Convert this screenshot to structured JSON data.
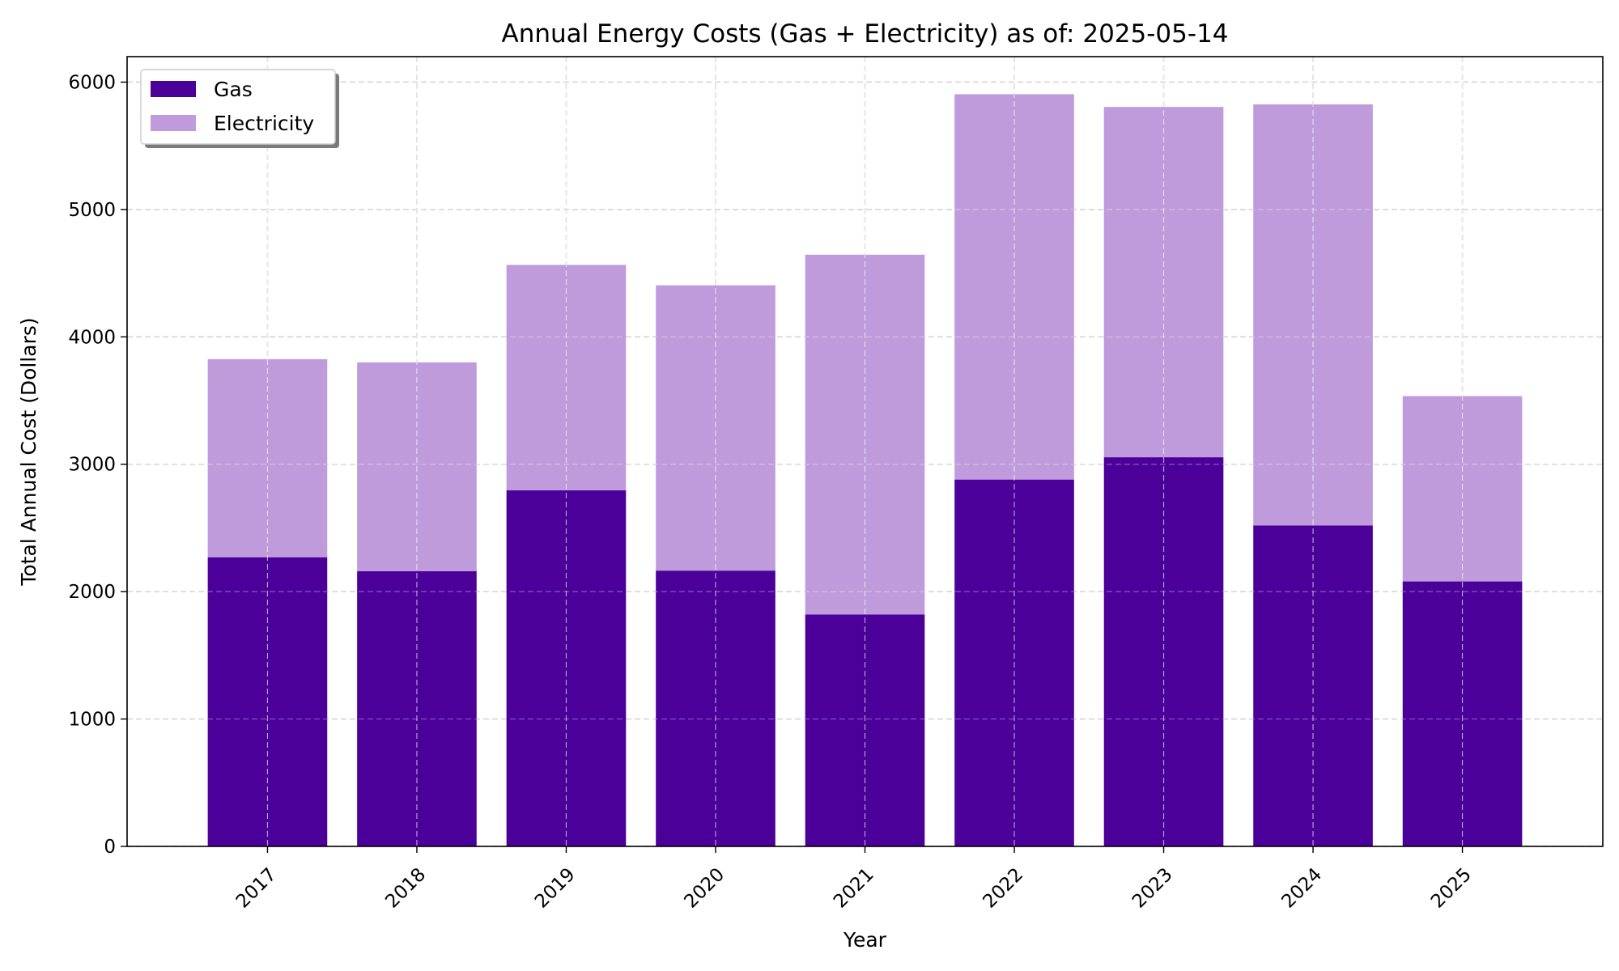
{
  "chart_data": {
    "type": "bar",
    "stacked": true,
    "title": "Annual Energy Costs (Gas + Electricity) as of: 2025-05-14",
    "xlabel": "Year",
    "ylabel": "Total Annual Cost (Dollars)",
    "categories": [
      "2017",
      "2018",
      "2019",
      "2020",
      "2021",
      "2022",
      "2023",
      "2024",
      "2025"
    ],
    "series": [
      {
        "name": "Gas",
        "color": "#4b0099",
        "values": [
          2270,
          2160,
          2795,
          2165,
          1820,
          2880,
          3055,
          2520,
          2080
        ]
      },
      {
        "name": "Electricity",
        "color": "#bf9bdb",
        "values": [
          1555,
          1640,
          1770,
          2240,
          2825,
          3025,
          2750,
          3305,
          1455
        ]
      }
    ],
    "ylim": [
      0,
      6200
    ],
    "yticks": [
      "0",
      "1000",
      "2000",
      "3000",
      "4000",
      "5000",
      "6000"
    ],
    "grid": true,
    "legend_position": "top-left"
  }
}
